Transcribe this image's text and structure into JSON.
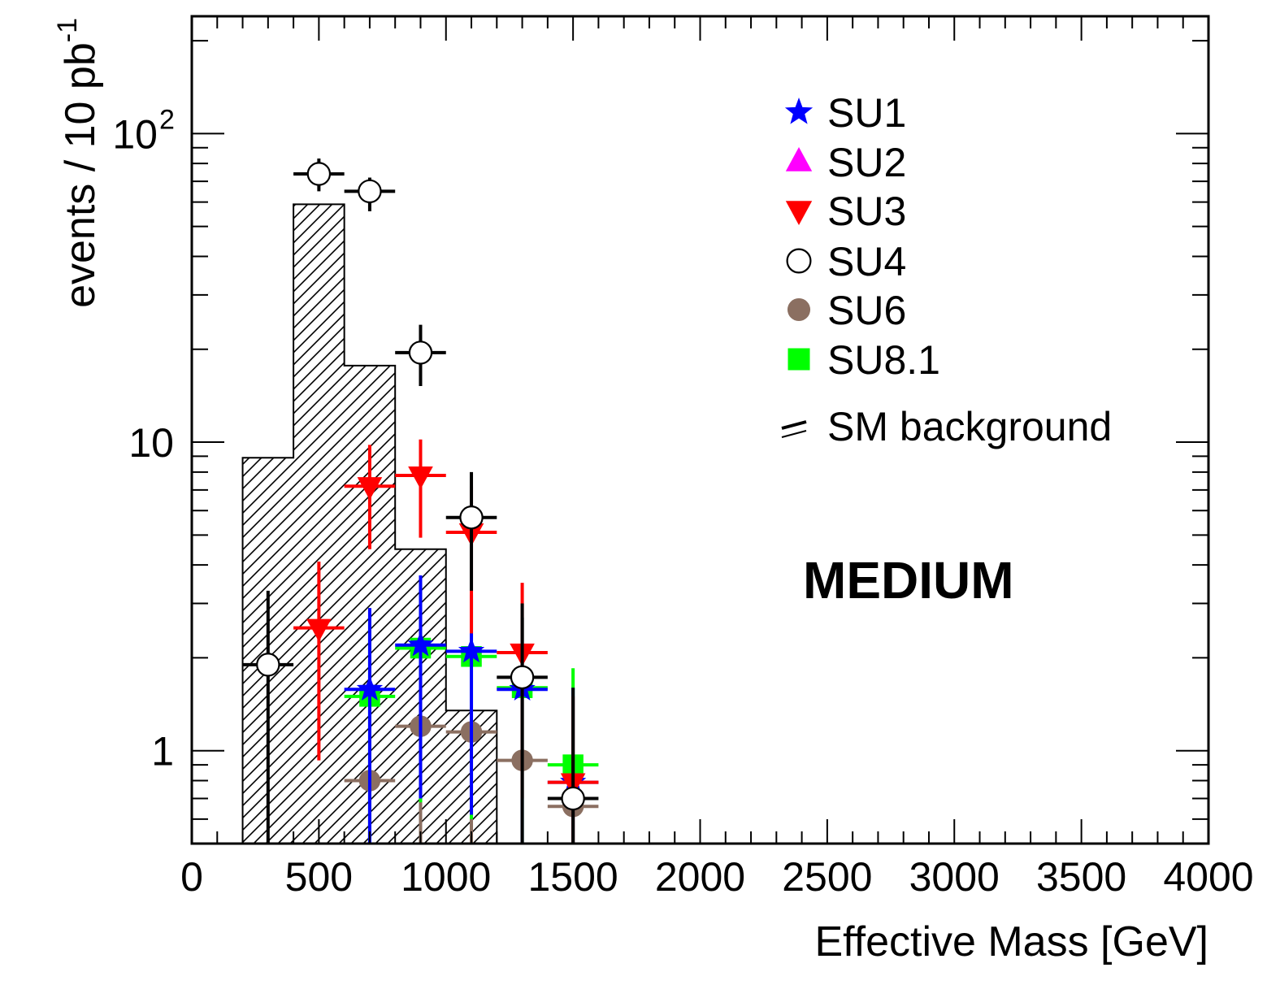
{
  "chart_data": {
    "type": "scatter",
    "annotation": "MEDIUM",
    "xlabel": "Effective Mass [GeV]",
    "ylabel": "events / 10 pb",
    "ylabel_superscript": "-1",
    "xlim": [
      0,
      4000
    ],
    "ylim": [
      0.5,
      240
    ],
    "log_y": true,
    "x_ticks": [
      "0",
      "500",
      "1000",
      "1500",
      "2000",
      "2500",
      "3000",
      "3500",
      "4000"
    ],
    "y_ticks": [
      {
        "value": 1,
        "label": "1"
      },
      {
        "value": 10,
        "label": "10"
      },
      {
        "value": 100,
        "label": "10",
        "sup": "2"
      }
    ],
    "legend_position": "top-right",
    "background": {
      "name": "SM background",
      "bin_edges": [
        200,
        400,
        600,
        800,
        1000,
        1200
      ],
      "values": [
        8.9,
        59,
        17.7,
        4.5,
        1.35
      ]
    },
    "series": [
      {
        "name": "SU1",
        "marker": "star",
        "color": "#0000ff",
        "points": [
          {
            "x": 700,
            "y": 1.58,
            "xerr": 100,
            "ylo": 0.5,
            "yhi": 2.9
          },
          {
            "x": 900,
            "y": 2.2,
            "xerr": 100,
            "ylo": 0.7,
            "yhi": 3.7
          },
          {
            "x": 1100,
            "y": 2.1,
            "xerr": 100,
            "ylo": 0.62,
            "yhi": 3.2
          },
          {
            "x": 1300,
            "y": 1.58,
            "xerr": 100,
            "ylo": 0.5,
            "yhi": 2.7
          },
          {
            "x": 1500,
            "y": 0.79,
            "xerr": 100,
            "ylo": 0.5,
            "yhi": 1.6
          }
        ]
      },
      {
        "name": "SU2",
        "marker": "triangle-up",
        "color": "#ff00ff",
        "points": []
      },
      {
        "name": "SU3",
        "marker": "triangle-down",
        "color": "#ff0000",
        "points": [
          {
            "x": 500,
            "y": 2.5,
            "xerr": 100,
            "ylo": 0.93,
            "yhi": 4.1
          },
          {
            "x": 700,
            "y": 7.2,
            "xerr": 100,
            "ylo": 4.5,
            "yhi": 9.8
          },
          {
            "x": 900,
            "y": 7.8,
            "xerr": 100,
            "ylo": 4.9,
            "yhi": 10.2
          },
          {
            "x": 1100,
            "y": 5.1,
            "xerr": 100,
            "ylo": 2.4,
            "yhi": 7.2
          },
          {
            "x": 1300,
            "y": 2.08,
            "xerr": 100,
            "ylo": 0.7,
            "yhi": 3.5
          },
          {
            "x": 1500,
            "y": 0.79,
            "xerr": 100,
            "ylo": 0.5,
            "yhi": 1.5
          }
        ]
      },
      {
        "name": "SU4",
        "marker": "circle-open",
        "color": "#000000",
        "points": [
          {
            "x": 300,
            "y": 1.9,
            "xerr": 100,
            "ylo": 0.5,
            "yhi": 3.3
          },
          {
            "x": 500,
            "y": 74,
            "xerr": 100,
            "ylo": 65,
            "yhi": 83
          },
          {
            "x": 700,
            "y": 65,
            "xerr": 100,
            "ylo": 56,
            "yhi": 72
          },
          {
            "x": 900,
            "y": 19.5,
            "xerr": 100,
            "ylo": 15.2,
            "yhi": 24
          },
          {
            "x": 1100,
            "y": 5.7,
            "xerr": 100,
            "ylo": 3.3,
            "yhi": 8.0
          },
          {
            "x": 1300,
            "y": 1.73,
            "xerr": 100,
            "ylo": 0.5,
            "yhi": 3.0
          },
          {
            "x": 1500,
            "y": 0.7,
            "xerr": 100,
            "ylo": 0.5,
            "yhi": 1.6
          }
        ]
      },
      {
        "name": "SU6",
        "marker": "circle-filled",
        "color": "#8b6f61",
        "points": [
          {
            "x": 700,
            "y": 0.8,
            "xerr": 100,
            "ylo": 0.5,
            "yhi": 0.8
          },
          {
            "x": 900,
            "y": 1.2,
            "xerr": 100,
            "ylo": 0.5,
            "yhi": 1.2
          },
          {
            "x": 1100,
            "y": 1.15,
            "xerr": 100,
            "ylo": 0.5,
            "yhi": 1.15
          },
          {
            "x": 1300,
            "y": 0.93,
            "xerr": 100,
            "ylo": 0.93,
            "yhi": 0.93
          },
          {
            "x": 1500,
            "y": 0.66,
            "xerr": 100,
            "ylo": 0.66,
            "yhi": 0.66
          }
        ]
      },
      {
        "name": "SU8.1",
        "marker": "square",
        "color": "#00ff00",
        "points": [
          {
            "x": 700,
            "y": 1.5,
            "xerr": 100,
            "ylo": 0.5,
            "yhi": 2.7
          },
          {
            "x": 900,
            "y": 2.15,
            "xerr": 100,
            "ylo": 0.68,
            "yhi": 3.5
          },
          {
            "x": 1100,
            "y": 2.02,
            "xerr": 100,
            "ylo": 0.6,
            "yhi": 3.1
          },
          {
            "x": 1300,
            "y": 1.6,
            "xerr": 100,
            "ylo": 0.5,
            "yhi": 2.7
          },
          {
            "x": 1500,
            "y": 0.9,
            "xerr": 100,
            "ylo": 0.5,
            "yhi": 1.85
          }
        ]
      }
    ]
  }
}
